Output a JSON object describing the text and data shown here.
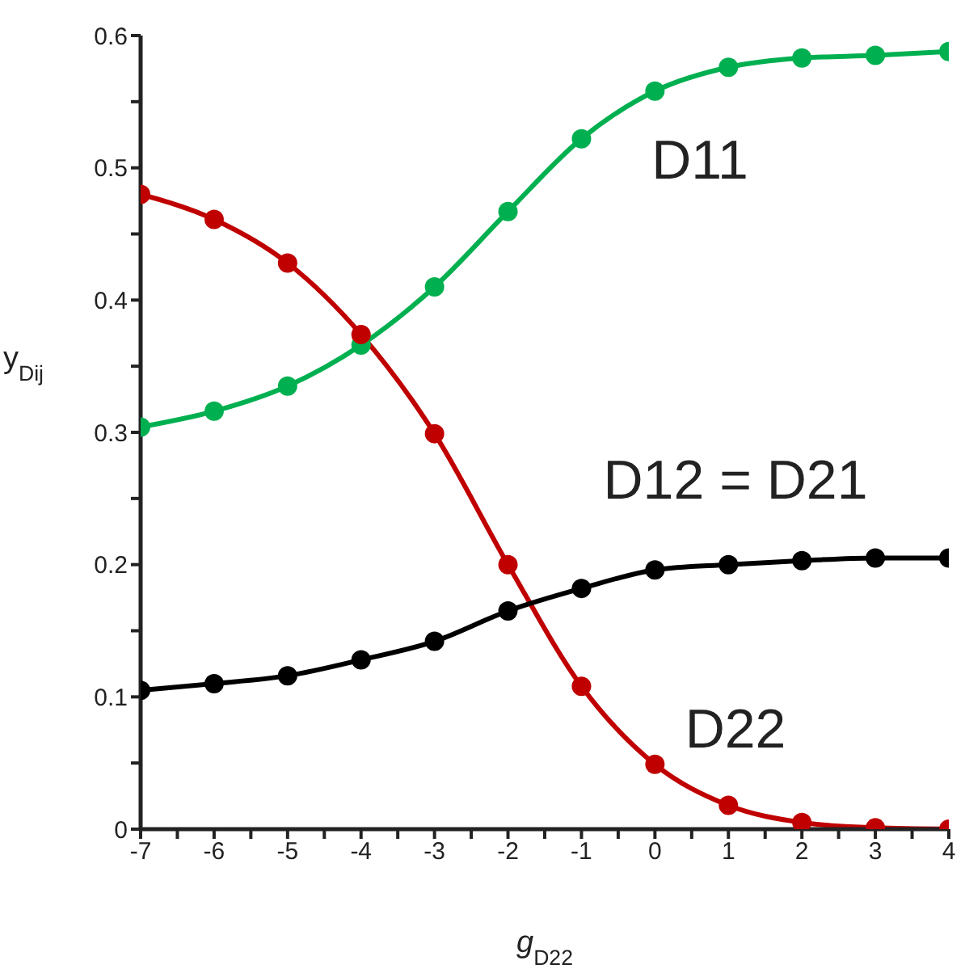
{
  "chart_data": {
    "type": "line",
    "xlabel": "$_{}$g$_{D22}$",
    "ylabel": "y$_{Dij}$",
    "x": [
      -7,
      -6,
      -5,
      -4,
      -3,
      -2,
      -1,
      0,
      1,
      2,
      3,
      4
    ],
    "series": [
      {
        "name": "D11",
        "color": "#00b050",
        "values": [
          0.304,
          0.316,
          0.335,
          0.366,
          0.41,
          0.467,
          0.522,
          0.558,
          0.576,
          0.583,
          0.585,
          0.588
        ]
      },
      {
        "name": "D22",
        "color": "#c00000",
        "values": [
          0.48,
          0.461,
          0.428,
          0.374,
          0.299,
          0.2,
          0.108,
          0.049,
          0.018,
          0.005,
          0.001,
          0
        ]
      },
      {
        "name": "D12 = D21",
        "color": "#000000",
        "values": [
          0.105,
          0.11,
          0.116,
          0.128,
          0.142,
          0.165,
          0.182,
          0.196,
          0.2,
          0.203,
          0.205,
          0.205
        ]
      }
    ],
    "xlim": [
      -7,
      4
    ],
    "xticks": [
      -7,
      {
        "value": -6.5,
        "label": null
      },
      -6,
      {
        "value": -5.5,
        "label": null
      },
      -5,
      {
        "value": -4.5,
        "label": null
      },
      -4,
      {
        "value": -3.5,
        "label": null
      },
      -3,
      {
        "value": -2.5,
        "label": null
      },
      -2,
      {
        "value": -1.5,
        "label": null
      },
      -1,
      {
        "value": -0.5,
        "label": null
      },
      0,
      {
        "value": 0.5,
        "label": null
      },
      1,
      {
        "value": 1.5,
        "label": null
      },
      2,
      {
        "value": 2.5,
        "label": null
      },
      3,
      {
        "value": 3.5,
        "label": null
      },
      4
    ],
    "ylim": [
      0,
      0.6
    ],
    "yticks": [
      0,
      {
        "value": 0.05,
        "label": null
      },
      0.1,
      {
        "value": 0.15,
        "label": null
      },
      0.2,
      {
        "value": 0.25,
        "label": null
      },
      0.3,
      {
        "value": 0.35,
        "label": null
      },
      0.4,
      {
        "value": 0.45,
        "label": null
      },
      0.5,
      {
        "value": 0.55,
        "label": null
      },
      0.6
    ],
    "marker": "circle",
    "line_style": "solid",
    "grid": false,
    "legend": false
  }
}
